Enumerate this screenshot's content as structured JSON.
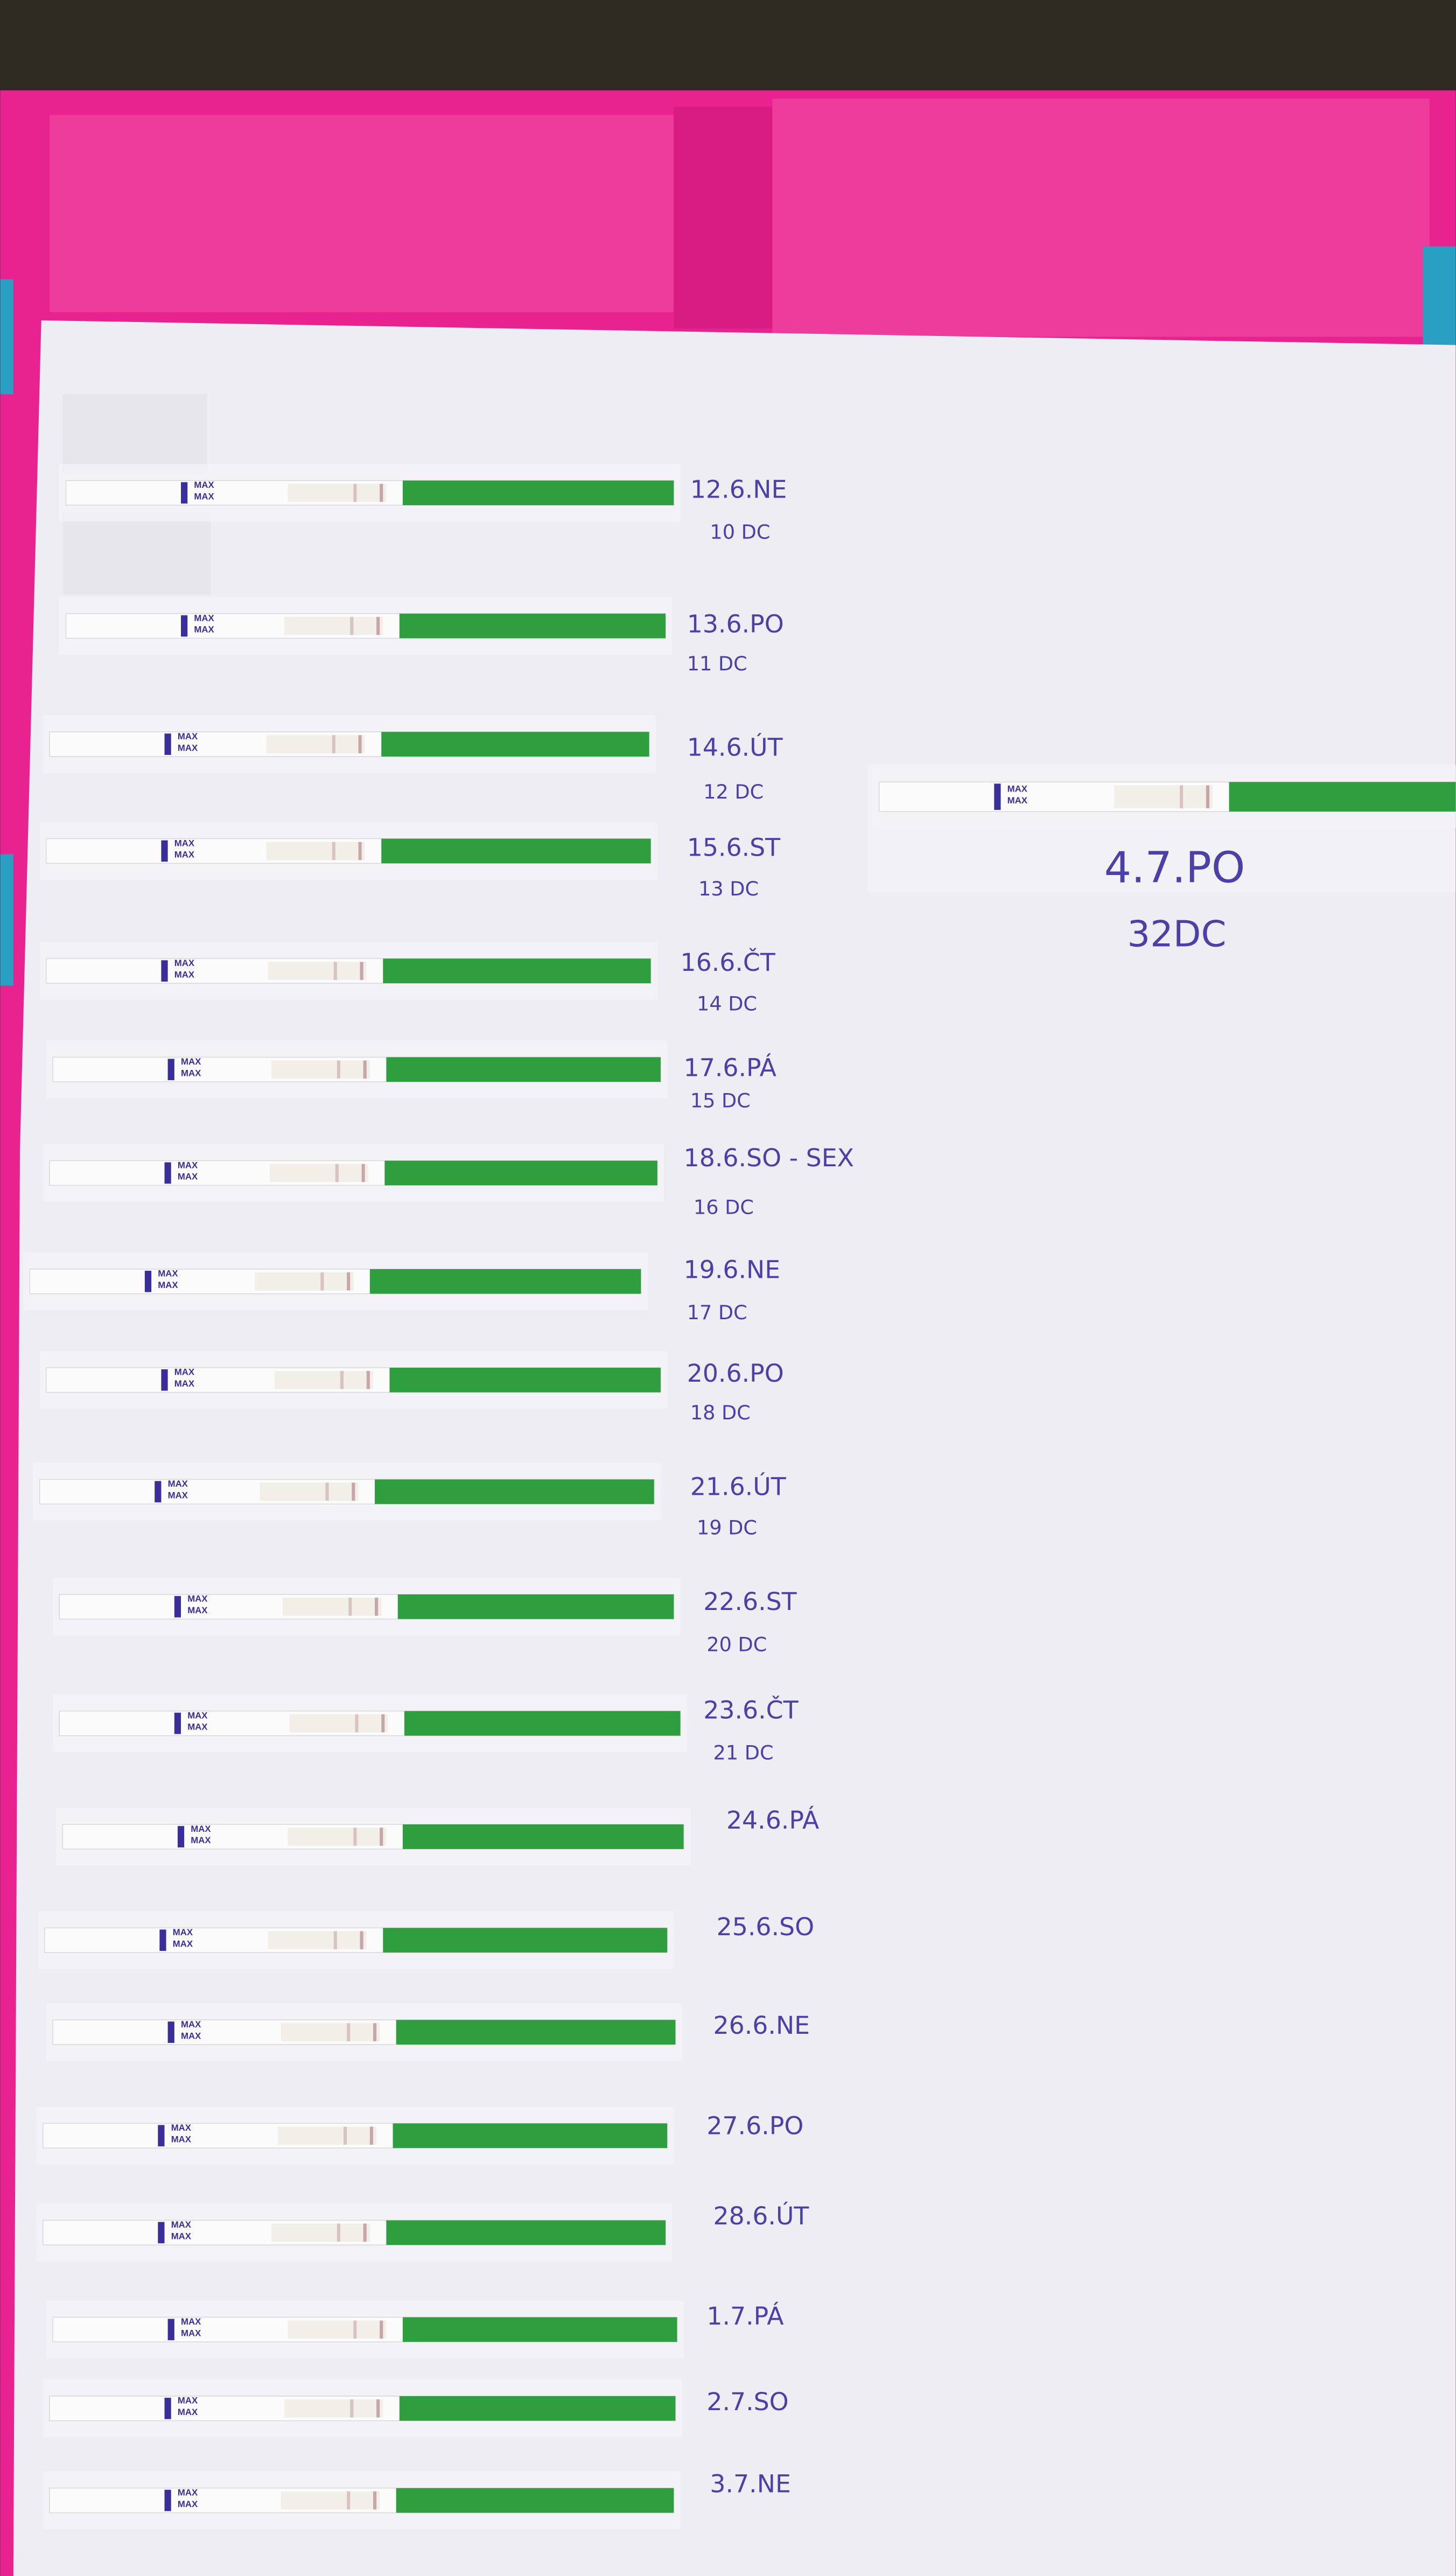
{
  "strip_text": "MAX",
  "tests": [
    {
      "date": "12.6.NE",
      "cycle_day": "10 DC"
    },
    {
      "date": "13.6.PO",
      "cycle_day": "11 DC"
    },
    {
      "date": "14.6.ÚT",
      "cycle_day": "12 DC"
    },
    {
      "date": "15.6.ST",
      "cycle_day": "13 DC"
    },
    {
      "date": "16.6.ČT",
      "cycle_day": "14 DC"
    },
    {
      "date": "17.6.PÁ",
      "cycle_day": "15 DC"
    },
    {
      "date": "18.6.SO - SEX",
      "cycle_day": "16 DC"
    },
    {
      "date": "19.6.NE",
      "cycle_day": "17 DC"
    },
    {
      "date": "20.6.PO",
      "cycle_day": "18 DC"
    },
    {
      "date": "21.6.ÚT",
      "cycle_day": "19 DC"
    },
    {
      "date": "22.6.ST",
      "cycle_day": "20 DC"
    },
    {
      "date": "23.6.ČT",
      "cycle_day": "21 DC"
    },
    {
      "date": "24.6.PÁ"
    },
    {
      "date": "25.6.SO"
    },
    {
      "date": "26.6.NE"
    },
    {
      "date": "27.6.PO"
    },
    {
      "date": "28.6.ÚT"
    },
    {
      "date": "1.7.PÁ"
    },
    {
      "date": "2.7.SO"
    },
    {
      "date": "3.7.NE"
    }
  ],
  "latest": {
    "date": "4.7.PO",
    "cycle_day": "32DC"
  }
}
